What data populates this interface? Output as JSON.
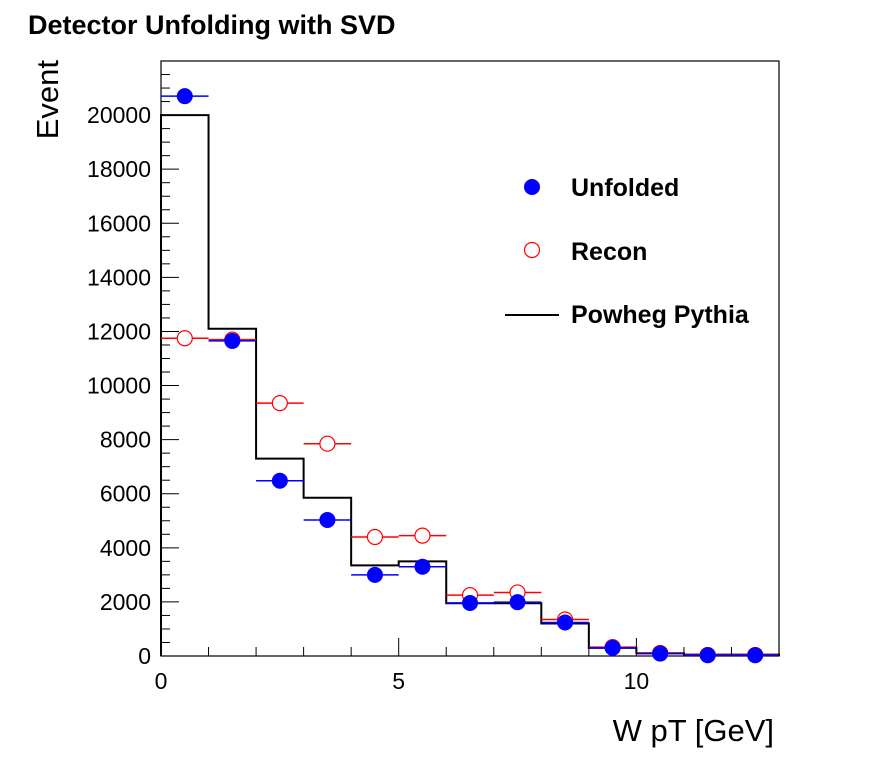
{
  "chart_data": {
    "type": "scatter",
    "title": "Detector Unfolding with SVD",
    "xlabel": "W pT [GeV]",
    "ylabel": "Event",
    "xlim": [
      0,
      13
    ],
    "ylim": [
      0,
      22000
    ],
    "x_ticks": [
      0,
      5,
      10
    ],
    "y_ticks": [
      0,
      2000,
      4000,
      6000,
      8000,
      10000,
      12000,
      14000,
      16000,
      18000,
      20000
    ],
    "grid": false,
    "legend_position": "top-right",
    "bin_edges": [
      0,
      1,
      2,
      3,
      4,
      5,
      6,
      7,
      8,
      9,
      10,
      11,
      12,
      13
    ],
    "series": [
      {
        "name": "Unfolded",
        "style": "marker-filled",
        "color": "#0000ff",
        "x": [
          0.5,
          1.5,
          2.5,
          3.5,
          4.5,
          5.5,
          6.5,
          7.5,
          8.5,
          9.5,
          10.5,
          11.5,
          12.5
        ],
        "values": [
          20700,
          11650,
          6480,
          5030,
          3000,
          3300,
          1960,
          1990,
          1240,
          300,
          90,
          30,
          30
        ]
      },
      {
        "name": "Recon",
        "style": "marker-open",
        "color": "#ff0000",
        "x": [
          0.5,
          1.5,
          2.5,
          3.5,
          4.5,
          5.5,
          6.5,
          7.5,
          8.5,
          9.5,
          10.5,
          11.5,
          12.5
        ],
        "values": [
          11750,
          11700,
          9350,
          7850,
          4400,
          4450,
          2250,
          2350,
          1350,
          330,
          110,
          40,
          40
        ]
      },
      {
        "name": "Powheg Pythia",
        "style": "step",
        "color": "#000000",
        "values": [
          20000,
          12100,
          7300,
          5850,
          3350,
          3500,
          1950,
          1950,
          1200,
          300,
          100,
          50,
          50
        ]
      }
    ]
  }
}
